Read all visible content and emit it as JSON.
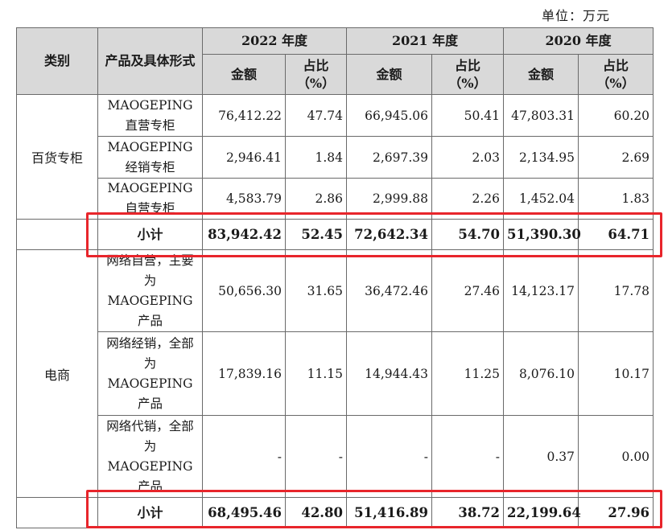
{
  "unit_label": "单位：万元",
  "header": {
    "category": "类别",
    "product": "产品及具体形式",
    "years": [
      "2022 年度",
      "2021 年度",
      "2020 年度"
    ],
    "amount": "金额",
    "ratio_line1": "占比",
    "ratio_line2": "（%）"
  },
  "groups": [
    {
      "category": "百货专柜",
      "rows": [
        {
          "product": "MAOGEPING直营专柜",
          "y2022_amount": "76,412.22",
          "y2022_ratio": "47.74",
          "y2021_amount": "66,945.06",
          "y2021_ratio": "50.41",
          "y2020_amount": "47,803.31",
          "y2020_ratio": "60.20"
        },
        {
          "product": "MAOGEPING经销专柜",
          "y2022_amount": "2,946.41",
          "y2022_ratio": "1.84",
          "y2021_amount": "2,697.39",
          "y2021_ratio": "2.03",
          "y2020_amount": "2,134.95",
          "y2020_ratio": "2.69"
        },
        {
          "product": "MAOGEPING自营专柜",
          "y2022_amount": "4,583.79",
          "y2022_ratio": "2.86",
          "y2021_amount": "2,999.88",
          "y2021_ratio": "2.26",
          "y2020_amount": "1,452.04",
          "y2020_ratio": "1.83"
        }
      ],
      "subtotal": {
        "label": "小计",
        "y2022_amount": "83,942.42",
        "y2022_ratio": "52.45",
        "y2021_amount": "72,642.34",
        "y2021_ratio": "54.70",
        "y2020_amount": "51,390.30",
        "y2020_ratio": "64.71"
      }
    },
    {
      "category": "电商",
      "rows": [
        {
          "product": "网络自营，主要为MAOGEPING产品",
          "y2022_amount": "50,656.30",
          "y2022_ratio": "31.65",
          "y2021_amount": "36,472.46",
          "y2021_ratio": "27.46",
          "y2020_amount": "14,123.17",
          "y2020_ratio": "17.78"
        },
        {
          "product": "网络经销，全部为MAOGEPING产品",
          "y2022_amount": "17,839.16",
          "y2022_ratio": "11.15",
          "y2021_amount": "14,944.43",
          "y2021_ratio": "11.25",
          "y2020_amount": "8,076.10",
          "y2020_ratio": "10.17"
        },
        {
          "product": "网络代销，全部为MAOGEPING产品",
          "y2022_amount": "-",
          "y2022_ratio": "-",
          "y2021_amount": "-",
          "y2021_ratio": "-",
          "y2020_amount": "0.37",
          "y2020_ratio": "0.00"
        }
      ],
      "subtotal": {
        "label": "小计",
        "y2022_amount": "68,495.46",
        "y2022_ratio": "42.80",
        "y2021_amount": "51,416.89",
        "y2021_ratio": "38.72",
        "y2020_amount": "22,199.64",
        "y2020_ratio": "27.96"
      }
    }
  ],
  "highlight_color": "#e8252b",
  "header_bg": "#d9d9d9"
}
